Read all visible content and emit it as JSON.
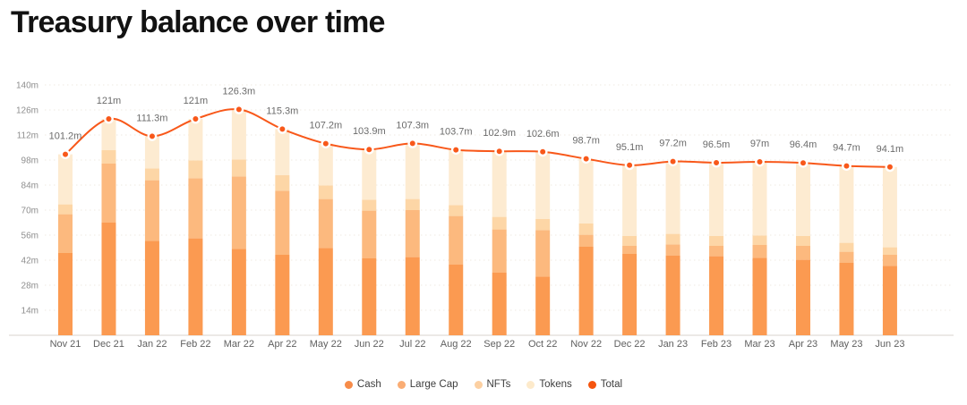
{
  "page": {
    "title": "Treasury balance over time"
  },
  "chart_data": {
    "type": "bar",
    "subtype": "stacked-bar-with-line-overlay",
    "title": "Treasury balance over time",
    "unit": "m",
    "xlabel": "",
    "ylabel": "",
    "ylim": [
      0,
      140
    ],
    "grid": "dotted-horizontal",
    "legend_position": "bottom-center",
    "y_ticks": [
      "140m",
      "126m",
      "112m",
      "98m",
      "84m",
      "70m",
      "56m",
      "42m",
      "28m",
      "14m"
    ],
    "categories": [
      "Nov 21",
      "Dec 21",
      "Jan 22",
      "Feb 22",
      "Mar 22",
      "Apr 22",
      "May 22",
      "Jun 22",
      "Jul 22",
      "Aug 22",
      "Sep 22",
      "Oct 22",
      "Nov 22",
      "Dec 22",
      "Jan 23",
      "Feb 23",
      "Mar 23",
      "Apr 23",
      "May 23",
      "Jun 23"
    ],
    "series": [
      {
        "name": "Cash",
        "color": "#FB9A51",
        "values": [
          46.0,
          63.0,
          52.8,
          54.2,
          48.3,
          45.0,
          48.8,
          43.0,
          43.7,
          39.5,
          35.0,
          32.8,
          49.5,
          45.5,
          44.5,
          44.2,
          43.3,
          42.2,
          40.5,
          38.8
        ]
      },
      {
        "name": "Large Cap",
        "color": "#FCB97E",
        "values": [
          21.7,
          33.0,
          33.9,
          33.6,
          40.5,
          35.8,
          27.4,
          26.7,
          26.3,
          27.2,
          24.2,
          26.0,
          6.7,
          4.5,
          6.3,
          5.8,
          7.2,
          7.8,
          6.2,
          6.2
        ]
      },
      {
        "name": "NFTs",
        "color": "#FDD6A6",
        "values": [
          5.5,
          7.5,
          6.6,
          10.0,
          9.5,
          8.7,
          7.6,
          6.1,
          6.2,
          6.1,
          7.0,
          6.2,
          6.3,
          5.5,
          5.9,
          5.5,
          5.3,
          5.5,
          5.0,
          4.2
        ]
      },
      {
        "name": "Tokens",
        "color": "#FDEBD1",
        "values": [
          28.0,
          17.5,
          18.0,
          23.2,
          28.0,
          25.8,
          23.4,
          28.1,
          31.1,
          30.9,
          36.7,
          37.6,
          36.2,
          39.6,
          40.5,
          41.0,
          41.2,
          40.9,
          43.0,
          44.9
        ]
      }
    ],
    "line": {
      "name": "Total",
      "color": "#F8581A",
      "values": [
        101.2,
        121,
        111.3,
        121,
        126.3,
        115.3,
        107.2,
        103.9,
        107.3,
        103.7,
        102.9,
        102.6,
        98.7,
        95.1,
        97.2,
        96.5,
        97,
        96.4,
        94.7,
        94.1
      ],
      "labels": [
        "101.2m",
        "121m",
        "111.3m",
        "121m",
        "126.3m",
        "115.3m",
        "107.2m",
        "103.9m",
        "107.3m",
        "103.7m",
        "102.9m",
        "102.6m",
        "98.7m",
        "95.1m",
        "97.2m",
        "96.5m",
        "97m",
        "96.4m",
        "94.7m",
        "94.1m"
      ]
    },
    "legend_items": [
      {
        "label": "Cash",
        "color": "#F78C49"
      },
      {
        "label": "Large Cap",
        "color": "#FAAD74"
      },
      {
        "label": "NFTs",
        "color": "#FCD0A2"
      },
      {
        "label": "Tokens",
        "color": "#FDEACB"
      },
      {
        "label": "Total",
        "color": "#F5540E"
      }
    ],
    "style": {
      "gridline_color": "#EFE9E2",
      "axis_line_color": "#E6E2DD",
      "y_tick_color": "#8E8E8E",
      "x_tick_color": "#606060",
      "point_label_color": "#6B6B6B",
      "marker_ring_color": "#FFFFFF"
    }
  }
}
